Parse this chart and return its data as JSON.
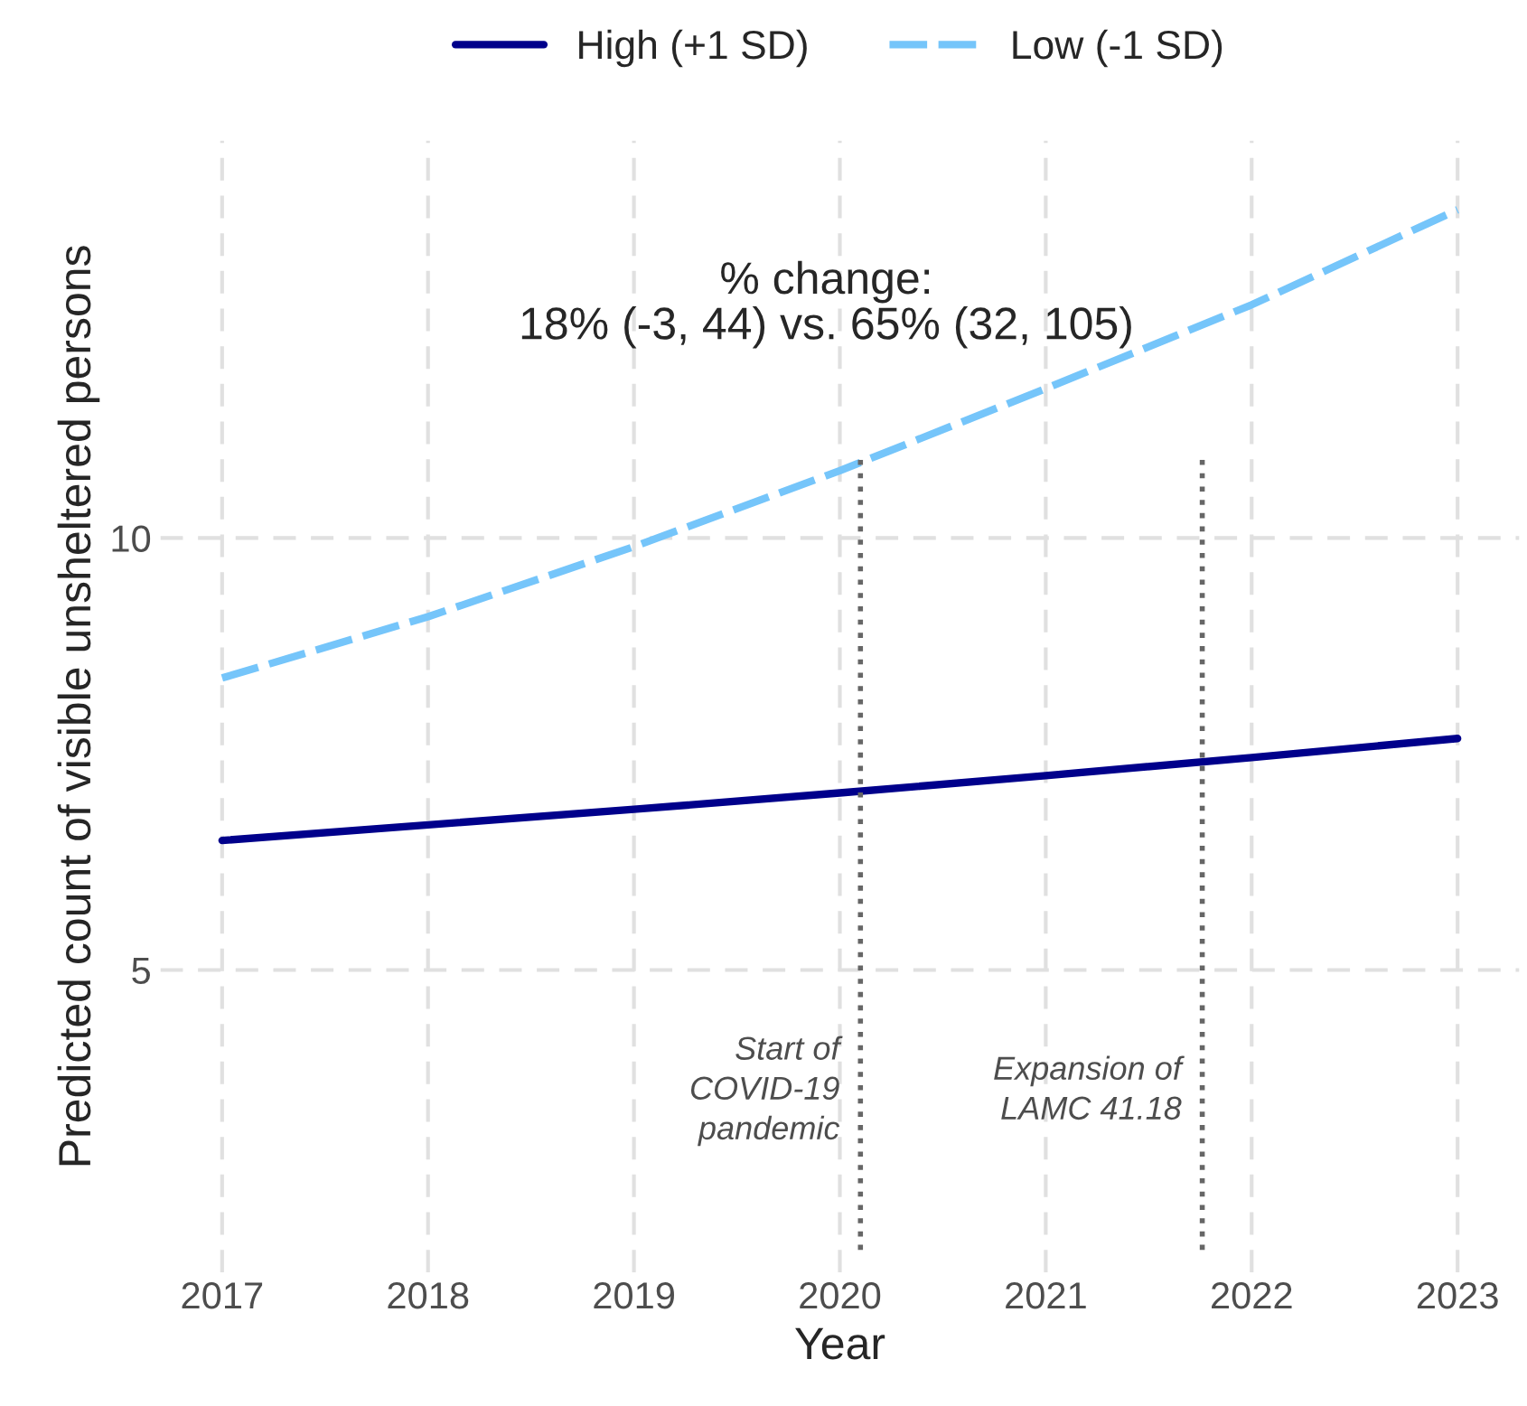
{
  "chart_data": {
    "type": "line",
    "xlabel": "Year",
    "ylabel": "Predicted count of visible unsheltered persons",
    "x": [
      2017,
      2018,
      2019,
      2020,
      2021,
      2022,
      2023
    ],
    "series": [
      {
        "name": "High (+1 SD)",
        "color": "#00008b",
        "line_style": "solid",
        "values": [
          6.5,
          6.68,
          6.86,
          7.05,
          7.25,
          7.46,
          7.68
        ]
      },
      {
        "name": "Low (-1 SD)",
        "color": "#75c5fa",
        "line_style": "dashed",
        "values": [
          8.38,
          9.09,
          9.9,
          10.78,
          11.73,
          12.7,
          13.8
        ]
      }
    ],
    "xlim": [
      2016.7,
      2023.3
    ],
    "xticks": [
      2017,
      2018,
      2019,
      2020,
      2021,
      2022,
      2023
    ],
    "ylim": [
      1.5,
      14.6
    ],
    "yticks": [
      5,
      10
    ],
    "ref_lines": [
      {
        "axis": "x",
        "value": 2020.1,
        "label": "Start of\nCOVID-19\npandemic",
        "color": "#666666",
        "line_style": "dotted"
      },
      {
        "axis": "x",
        "value": 2021.76,
        "label": "Expansion of\nLAMC 41.18",
        "color": "#666666",
        "line_style": "dotted"
      }
    ],
    "annotations": [
      "% change:\n18% (-3, 44) vs. 65% (32, 105)"
    ],
    "grid": true,
    "legend": "top",
    "marker": "none"
  }
}
